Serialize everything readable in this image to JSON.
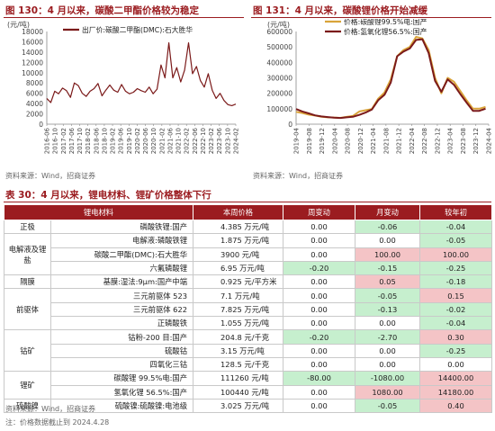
{
  "fig130": {
    "title": "图 130：4 月以来，碳酸二甲酯价格较为稳定",
    "source": "资料来源：Wind，招商证券",
    "chart_data": {
      "type": "line",
      "unit_label": "(元/吨)",
      "ylim": [
        0,
        18000
      ],
      "yticks": [
        0,
        2000,
        4000,
        6000,
        8000,
        10000,
        12000,
        14000,
        16000,
        18000
      ],
      "xticks": [
        "2016-06",
        "2016-10",
        "2017-02",
        "2017-06",
        "2017-10",
        "2018-02",
        "2018-06",
        "2018-10",
        "2019-02",
        "2019-06",
        "2019-10",
        "2020-02",
        "2020-06",
        "2020-10",
        "2021-02",
        "2021-06",
        "2021-10",
        "2022-02",
        "2022-06",
        "2022-10",
        "2023-02",
        "2023-06",
        "2023-10",
        "2024-02"
      ],
      "legend_position": "top-right",
      "series": [
        {
          "name": "出厂价:碳酸二甲酯(DMC):石大胜华",
          "color": "#7b1a1a",
          "x": [
            0,
            2,
            4,
            6,
            8,
            10,
            12,
            14,
            16,
            18,
            20,
            22,
            24,
            26,
            28,
            30,
            32,
            34,
            36,
            38,
            40,
            42,
            44,
            46,
            48,
            50,
            52,
            54,
            56,
            58,
            60,
            62,
            64,
            66,
            68,
            70,
            72,
            74,
            76,
            78,
            80,
            82,
            84,
            86,
            88,
            90,
            92,
            94,
            96
          ],
          "values": [
            5000,
            4200,
            6400,
            5900,
            7000,
            6500,
            5200,
            8000,
            7500,
            6000,
            5400,
            6400,
            6900,
            7900,
            5500,
            6600,
            7600,
            6600,
            6200,
            7700,
            6400,
            5900,
            6200,
            6900,
            6500,
            6200,
            7200,
            5900,
            6800,
            11500,
            9000,
            15800,
            9000,
            11000,
            8200,
            10500,
            15800,
            9800,
            11200,
            8500,
            7200,
            9800,
            6600,
            5000,
            6000,
            4600,
            3800,
            3600,
            3900
          ]
        }
      ]
    }
  },
  "fig131": {
    "title": "图 131：4 月以来，碳酸锂价格开始减缓",
    "source": "资料来源：Wind，招商证券",
    "chart_data": {
      "type": "line",
      "unit_label": "(元/吨)",
      "ylim": [
        0,
        600000
      ],
      "yticks": [
        0,
        100000,
        200000,
        300000,
        400000,
        500000,
        600000
      ],
      "xticks": [
        "2019-04",
        "2019-08",
        "2019-12",
        "2020-04",
        "2020-08",
        "2020-12",
        "2021-04",
        "2021-08",
        "2021-12",
        "2022-04",
        "2022-08",
        "2022-12",
        "2023-04",
        "2023-08",
        "2023-12",
        "2024-04"
      ],
      "legend_position": "top-left",
      "series": [
        {
          "name": "价格:碳酸锂99.5%电:国产",
          "color": "#d9a43a",
          "x": [
            0,
            2,
            4,
            6,
            8,
            10,
            12,
            14,
            16,
            18,
            20,
            22,
            24,
            26,
            28,
            30,
            32,
            34,
            36,
            38,
            40,
            42,
            44,
            46,
            48,
            50,
            52,
            54,
            56,
            58,
            60
          ],
          "values": [
            80000,
            72000,
            62000,
            56000,
            48000,
            44000,
            43000,
            41000,
            47000,
            53000,
            82000,
            90000,
            98000,
            165000,
            205000,
            290000,
            440000,
            480000,
            500000,
            565000,
            555000,
            480000,
            300000,
            200000,
            300000,
            275000,
            215000,
            155000,
            100000,
            100000,
            111000
          ]
        },
        {
          "name": "价格:氢氧化锂56.5%:国产",
          "color": "#7b1a1a",
          "x": [
            0,
            2,
            4,
            6,
            8,
            10,
            12,
            14,
            16,
            18,
            20,
            22,
            24,
            26,
            28,
            30,
            32,
            34,
            36,
            38,
            40,
            42,
            44,
            46,
            48,
            50,
            52,
            54,
            56,
            58,
            60
          ],
          "values": [
            98000,
            82000,
            70000,
            57000,
            50000,
            46000,
            42000,
            40000,
            44000,
            48000,
            60000,
            75000,
            95000,
            155000,
            190000,
            270000,
            440000,
            470000,
            490000,
            545000,
            550000,
            460000,
            280000,
            210000,
            290000,
            255000,
            195000,
            140000,
            86000,
            86000,
            100000
          ]
        }
      ]
    }
  },
  "table30": {
    "title": "表 30：4 月以来，锂电材料、锂矿价格整体下行",
    "source": "资料来源：Wind，招商证券",
    "note": "注：价格数据截止到 2024.4.28",
    "headers": [
      "锂电材料",
      "本周价格",
      "周变动",
      "月变动",
      "较年初"
    ],
    "rows": [
      {
        "item": "磷酸铁锂:国产",
        "price": "4.385 万元/吨",
        "w": "0.00",
        "m": "-0.06",
        "y": "-0.04"
      },
      {
        "item": "电解液:磷酸铁锂",
        "price": "1.875 万元/吨",
        "w": "0.00",
        "m": "0.00",
        "y": "-0.05"
      },
      {
        "item": "碳酸二甲酯(DMC):石大胜华",
        "price": "3900 元/吨",
        "w": "0.00",
        "m": "100.00",
        "y": "100.00"
      },
      {
        "item": "六氟磷酸锂",
        "price": "6.95 万元/吨",
        "w": "-0.20",
        "m": "-0.15",
        "y": "-0.25"
      },
      {
        "item": "基膜:湿法:9μm:国产中端",
        "price": "0.925 元/平方米",
        "w": "0.00",
        "m": "0.05",
        "y": "-0.18"
      },
      {
        "item": "三元前驱体 523",
        "price": "7.1 万元/吨",
        "w": "0.00",
        "m": "-0.05",
        "y": "0.15"
      },
      {
        "item": "三元前驱体 622",
        "price": "7.825 万元/吨",
        "w": "0.00",
        "m": "-0.13",
        "y": "-0.02"
      },
      {
        "item": "正磷酸铁",
        "price": "1.055 万元/吨",
        "w": "0.00",
        "m": "0.00",
        "y": "-0.04"
      },
      {
        "item": "钴粉-200 目:国产",
        "price": "204.8 元/千克",
        "w": "-0.20",
        "m": "-2.70",
        "y": "0.30"
      },
      {
        "item": "硫酸钴",
        "price": "3.15 万元/吨",
        "w": "0.00",
        "m": "0.00",
        "y": "-0.25"
      },
      {
        "item": "四氧化三钴",
        "price": "128.5 元/千克",
        "w": "0.00",
        "m": "0.00",
        "y": "0.00"
      },
      {
        "item": "碳酸锂 99.5%电:国产",
        "price": "111260 元/吨",
        "w": "-80.00",
        "m": "-1080.00",
        "y": "14400.00"
      },
      {
        "item": "氢氧化锂 56.5%:国产",
        "price": "100440 元/吨",
        "w": "0.00",
        "m": "1080.00",
        "y": "14180.00"
      },
      {
        "item": "硫酸镍:硫酸镍:电池级",
        "price": "3.025 万元/吨",
        "w": "0.00",
        "m": "-0.05",
        "y": "0.40"
      }
    ],
    "categories": [
      {
        "label": "正极",
        "start": 0,
        "span": 1
      },
      {
        "label": "电解液及锂盐",
        "start": 1,
        "span": 3
      },
      {
        "label": "隔膜",
        "start": 4,
        "span": 1
      },
      {
        "label": "前驱体",
        "start": 5,
        "span": 3
      },
      {
        "label": "钴矿",
        "start": 8,
        "span": 3
      },
      {
        "label": "锂矿",
        "start": 11,
        "span": 2
      },
      {
        "label": "硫酸镍",
        "start": 13,
        "span": 1
      }
    ],
    "colors": {
      "header": "#9b1c20",
      "positive": "#f4c4c6",
      "negative": "#c6efce"
    }
  }
}
